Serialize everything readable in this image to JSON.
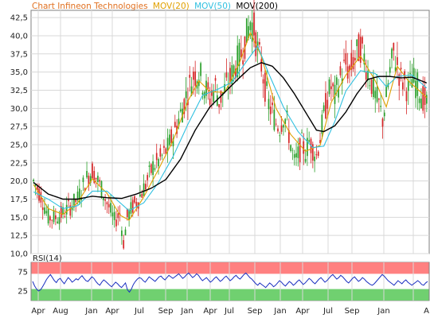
{
  "header": {
    "title": "Chart Infineon Technologies",
    "mov20_label": "MOV(20)",
    "mov50_label": "MOV(50)",
    "mov200_label": "MOV(200)"
  },
  "rsi_panel": {
    "label": "RSI(14)"
  },
  "colors": {
    "title": "#e07020",
    "mov20": "#e0a000",
    "mov50": "#30c0e0",
    "mov200": "#000000",
    "candle_up": "#2ca02c",
    "candle_down": "#d62728",
    "rsi_line": "#1a2fc0",
    "rsi_overbought_band": "#ff8080",
    "rsi_oversold_band": "#70d070",
    "grid": "#d8d8d8"
  },
  "chart_data": [
    {
      "type": "candlestick",
      "title": "Chart Infineon Technologies",
      "ylim": [
        10.0,
        43.5
      ],
      "yticks": [
        10.0,
        12.5,
        15.0,
        17.5,
        20.0,
        22.5,
        25.0,
        27.5,
        30.0,
        32.5,
        35.0,
        37.5,
        40.0,
        42.5
      ],
      "ytick_labels": [
        "10,0",
        "12,5",
        "15,0",
        "17,5",
        "20,0",
        "22,5",
        "25,0",
        "27,5",
        "30,0",
        "32,5",
        "35,0",
        "37,5",
        "40,0",
        "42,5"
      ],
      "xtick_labels": [
        "Apr",
        "Aug",
        "Jan",
        "Apr",
        "Jul",
        "Sep",
        "Jan",
        "Apr",
        "Jul",
        "Sep",
        "Jan",
        "Apr",
        "Jul",
        "Sep",
        "Jan",
        "A"
      ],
      "grid": true,
      "legend_position": "top-left",
      "price_anchors": [
        [
          0,
          20.0
        ],
        [
          4,
          18.0
        ],
        [
          8,
          15.0
        ],
        [
          12,
          15.0
        ],
        [
          16,
          15.5
        ],
        [
          20,
          16.5
        ],
        [
          24,
          17.5
        ],
        [
          28,
          20.0
        ],
        [
          32,
          21.5
        ],
        [
          36,
          19.5
        ],
        [
          40,
          17.0
        ],
        [
          44,
          14.5
        ],
        [
          47,
          15.5
        ],
        [
          49,
          11.5
        ],
        [
          51,
          15.0
        ],
        [
          54,
          16.5
        ],
        [
          57,
          17.5
        ],
        [
          61,
          19.5
        ],
        [
          65,
          22.0
        ],
        [
          69,
          23.0
        ],
        [
          73,
          24.5
        ],
        [
          77,
          27.0
        ],
        [
          81,
          30.0
        ],
        [
          84,
          32.5
        ],
        [
          87,
          34.5
        ],
        [
          90,
          35.0
        ],
        [
          93,
          33.0
        ],
        [
          96,
          31.5
        ],
        [
          99,
          33.0
        ],
        [
          101,
          31.0
        ],
        [
          104,
          32.5
        ],
        [
          107,
          34.0
        ],
        [
          110,
          36.0
        ],
        [
          113,
          37.5
        ],
        [
          116,
          40.0
        ],
        [
          118,
          42.0
        ],
        [
          120,
          41.0
        ],
        [
          122,
          38.0
        ],
        [
          124,
          36.0
        ],
        [
          126,
          33.0
        ],
        [
          128,
          30.5
        ],
        [
          130,
          29.5
        ],
        [
          132,
          28.0
        ],
        [
          134,
          27.5
        ],
        [
          136,
          29.0
        ],
        [
          138,
          28.0
        ],
        [
          140,
          25.0
        ],
        [
          142,
          22.5
        ],
        [
          144,
          23.5
        ],
        [
          146,
          25.0
        ],
        [
          148,
          24.0
        ],
        [
          150,
          25.5
        ],
        [
          152,
          24.5
        ],
        [
          154,
          23.5
        ],
        [
          156,
          26.0
        ],
        [
          158,
          29.0
        ],
        [
          160,
          31.5
        ],
        [
          162,
          33.0
        ],
        [
          164,
          31.5
        ],
        [
          166,
          33.5
        ],
        [
          168,
          35.0
        ],
        [
          170,
          36.0
        ],
        [
          172,
          35.0
        ],
        [
          174,
          36.5
        ],
        [
          176,
          37.5
        ],
        [
          178,
          38.5
        ],
        [
          180,
          37.0
        ],
        [
          182,
          35.0
        ],
        [
          184,
          33.5
        ],
        [
          186,
          31.5
        ],
        [
          188,
          30.5
        ],
        [
          190,
          28.5
        ],
        [
          192,
          31.5
        ],
        [
          194,
          35.0
        ],
        [
          196,
          37.5
        ],
        [
          198,
          36.0
        ],
        [
          200,
          34.0
        ],
        [
          202,
          33.5
        ],
        [
          204,
          32.5
        ],
        [
          206,
          34.0
        ],
        [
          208,
          33.5
        ],
        [
          210,
          32.5
        ],
        [
          212,
          31.5
        ],
        [
          214,
          30.5
        ]
      ],
      "series": [
        {
          "name": "MOV(20)",
          "points": [
            [
              0,
              19.5
            ],
            [
              8,
              16.2
            ],
            [
              16,
              15.4
            ],
            [
              24,
              17.0
            ],
            [
              32,
              20.3
            ],
            [
              40,
              18.3
            ],
            [
              47,
              15.3
            ],
            [
              52,
              14.6
            ],
            [
              60,
              17.8
            ],
            [
              68,
              21.6
            ],
            [
              76,
              25.6
            ],
            [
              84,
              31.0
            ],
            [
              90,
              33.8
            ],
            [
              96,
              32.3
            ],
            [
              104,
              32.2
            ],
            [
              112,
              36.2
            ],
            [
              118,
              40.4
            ],
            [
              124,
              37.2
            ],
            [
              132,
              30.0
            ],
            [
              140,
              26.4
            ],
            [
              148,
              24.1
            ],
            [
              156,
              24.9
            ],
            [
              162,
              30.8
            ],
            [
              170,
              34.6
            ],
            [
              178,
              37.2
            ],
            [
              186,
              33.8
            ],
            [
              192,
              30.2
            ],
            [
              198,
              35.8
            ],
            [
              204,
              33.8
            ],
            [
              214,
              31.5
            ]
          ]
        },
        {
          "name": "MOV(50)",
          "points": [
            [
              0,
              18.5
            ],
            [
              8,
              17.5
            ],
            [
              16,
              16.2
            ],
            [
              24,
              16.6
            ],
            [
              32,
              18.6
            ],
            [
              40,
              18.6
            ],
            [
              48,
              16.8
            ],
            [
              52,
              15.9
            ],
            [
              60,
              17.0
            ],
            [
              68,
              19.8
            ],
            [
              76,
              23.4
            ],
            [
              84,
              27.8
            ],
            [
              92,
              31.8
            ],
            [
              100,
              32.6
            ],
            [
              108,
              33.6
            ],
            [
              116,
              36.5
            ],
            [
              122,
              38.6
            ],
            [
              128,
              34.8
            ],
            [
              136,
              30.2
            ],
            [
              144,
              26.8
            ],
            [
              152,
              24.6
            ],
            [
              158,
              24.8
            ],
            [
              164,
              28.2
            ],
            [
              170,
              32.4
            ],
            [
              178,
              35.2
            ],
            [
              186,
              34.8
            ],
            [
              192,
              33.0
            ],
            [
              198,
              34.4
            ],
            [
              206,
              34.6
            ],
            [
              214,
              32.8
            ]
          ]
        },
        {
          "name": "MOV(200)",
          "points": [
            [
              0,
              19.8
            ],
            [
              8,
              18.2
            ],
            [
              16,
              17.5
            ],
            [
              24,
              17.5
            ],
            [
              32,
              17.9
            ],
            [
              40,
              17.7
            ],
            [
              48,
              17.6
            ],
            [
              56,
              18.2
            ],
            [
              64,
              19.0
            ],
            [
              72,
              20.2
            ],
            [
              80,
              23.0
            ],
            [
              88,
              27.0
            ],
            [
              96,
              30.2
            ],
            [
              104,
              32.2
            ],
            [
              112,
              34.2
            ],
            [
              118,
              35.6
            ],
            [
              124,
              36.3
            ],
            [
              130,
              35.8
            ],
            [
              136,
              34.2
            ],
            [
              142,
              32.0
            ],
            [
              148,
              29.5
            ],
            [
              154,
              27.0
            ],
            [
              158,
              26.8
            ],
            [
              164,
              27.6
            ],
            [
              170,
              29.5
            ],
            [
              176,
              32.0
            ],
            [
              182,
              34.0
            ],
            [
              188,
              34.4
            ],
            [
              194,
              34.4
            ],
            [
              200,
              34.2
            ],
            [
              206,
              34.3
            ],
            [
              214,
              33.5
            ]
          ]
        }
      ]
    },
    {
      "type": "line",
      "title": "RSI(14)",
      "ylim": [
        0,
        100
      ],
      "yticks": [
        25,
        75
      ],
      "ytick_labels": [
        "25",
        "75"
      ],
      "xtick_labels": [
        "Apr",
        "Aug",
        "Jan",
        "Apr",
        "Jul",
        "Sep",
        "Jan",
        "Apr",
        "Jul",
        "Sep",
        "Jan",
        "Apr",
        "Jul",
        "Sep",
        "Jan",
        "A"
      ],
      "bands": [
        {
          "from": 70,
          "to": 100
        },
        {
          "from": 0,
          "to": 30
        }
      ],
      "series": [
        {
          "name": "RSI(14)",
          "values": [
            50,
            38,
            30,
            25,
            28,
            36,
            45,
            55,
            62,
            68,
            60,
            52,
            47,
            55,
            58,
            50,
            44,
            52,
            60,
            55,
            48,
            52,
            57,
            54,
            60,
            65,
            58,
            52,
            50,
            56,
            62,
            58,
            50,
            44,
            40,
            48,
            54,
            50,
            45,
            40,
            36,
            42,
            48,
            44,
            38,
            34,
            40,
            46,
            28,
            22,
            30,
            42,
            50,
            56,
            60,
            58,
            52,
            48,
            55,
            62,
            58,
            54,
            50,
            56,
            62,
            64,
            58,
            54,
            60,
            66,
            62,
            58,
            62,
            66,
            70,
            64,
            58,
            62,
            68,
            72,
            66,
            60,
            64,
            70,
            66,
            58,
            52,
            56,
            60,
            54,
            48,
            52,
            58,
            62,
            56,
            50,
            54,
            60,
            64,
            58,
            52,
            56,
            62,
            66,
            60,
            56,
            62,
            68,
            72,
            66,
            60,
            56,
            50,
            44,
            40,
            46,
            42,
            38,
            34,
            40,
            46,
            42,
            36,
            40,
            46,
            52,
            48,
            42,
            38,
            44,
            50,
            46,
            40,
            44,
            50,
            54,
            48,
            42,
            46,
            52,
            58,
            54,
            48,
            44,
            50,
            56,
            60,
            54,
            48,
            52,
            58,
            64,
            68,
            62,
            56,
            60,
            66,
            62,
            56,
            50,
            46,
            52,
            58,
            62,
            56,
            50,
            54,
            60,
            56,
            50,
            46,
            42,
            40,
            44,
            50,
            56,
            62,
            68,
            64,
            58,
            52,
            48,
            44,
            40,
            46,
            52,
            48,
            44,
            50,
            54,
            48,
            44,
            40,
            44,
            48,
            52,
            48,
            42,
            40,
            46,
            50
          ]
        }
      ]
    }
  ]
}
